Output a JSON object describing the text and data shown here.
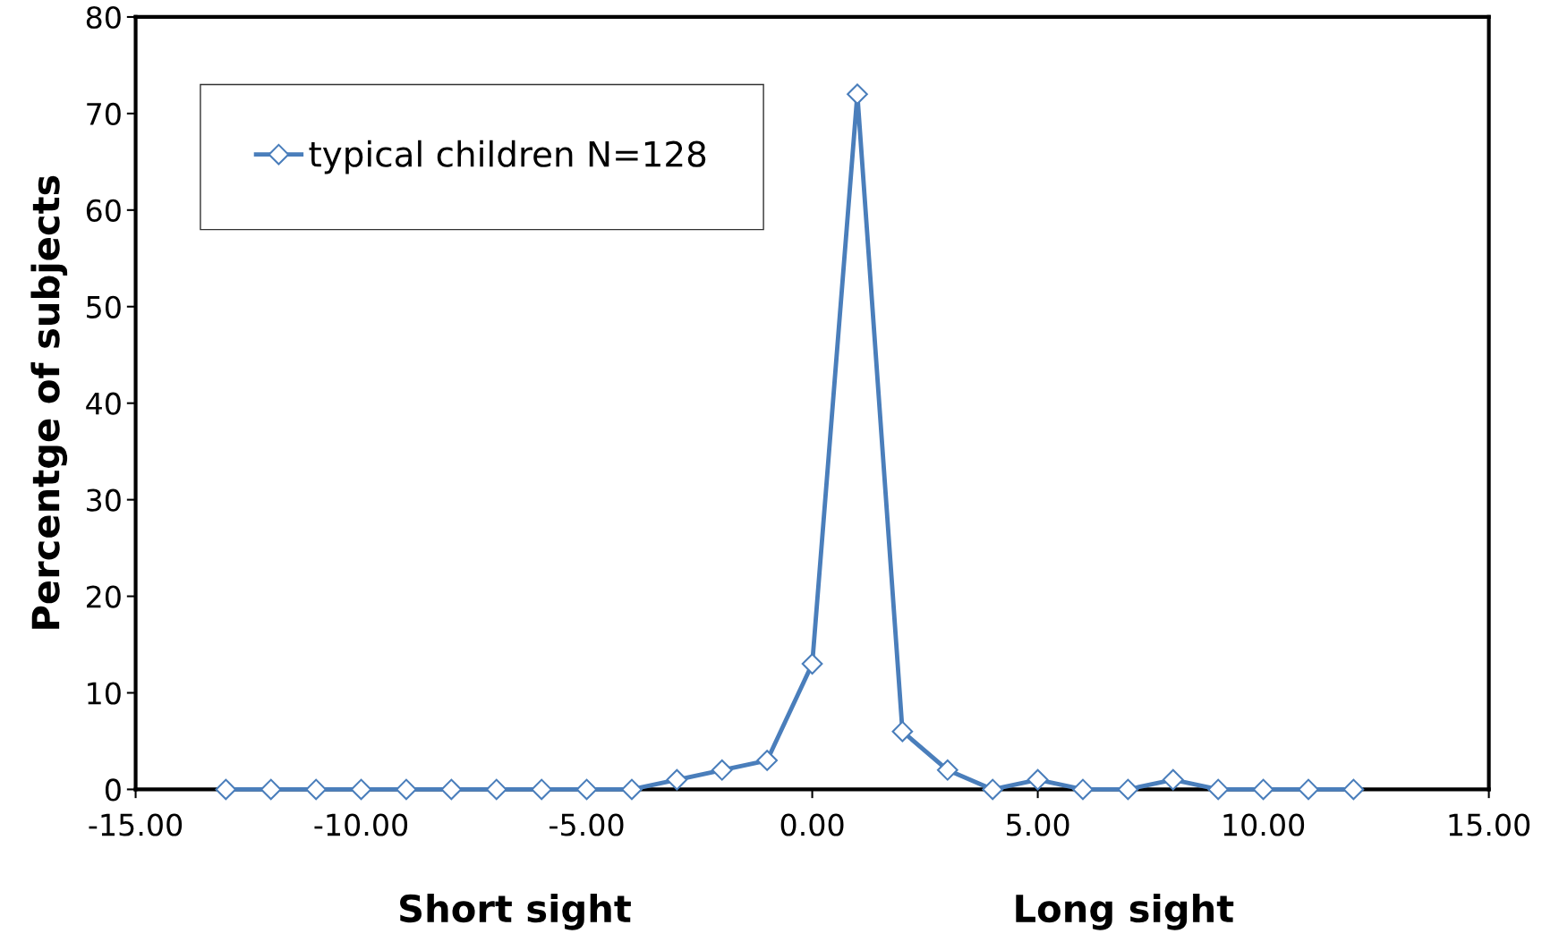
{
  "chart_data": {
    "type": "line",
    "ylabel": "Percentge of subjects",
    "annotations": [
      "Short sight",
      "Long sight"
    ],
    "x": [
      -13,
      -12,
      -11,
      -10,
      -9,
      -8,
      -7,
      -6,
      -5,
      -4,
      -3,
      -2,
      -1,
      0,
      1,
      2,
      3,
      4,
      5,
      6,
      7,
      8,
      9,
      10,
      11,
      12
    ],
    "series": [
      {
        "name": "typical children N=128",
        "color": "#4a7ebb",
        "values": [
          0,
          0,
          0,
          0,
          0,
          0,
          0,
          0,
          0,
          0,
          1,
          2,
          3,
          13,
          72,
          6,
          2,
          0,
          1,
          0,
          0,
          1,
          0,
          0,
          0,
          0
        ]
      }
    ],
    "xlim": [
      -15,
      15
    ],
    "xticks": [
      {
        "value": -15,
        "label": "-15.00"
      },
      {
        "value": -10,
        "label": "-10.00"
      },
      {
        "value": -5,
        "label": "-5.00"
      },
      {
        "value": 0,
        "label": "0.00"
      },
      {
        "value": 5,
        "label": "5.00"
      },
      {
        "value": 10,
        "label": "10.00"
      },
      {
        "value": 15,
        "label": "15.00"
      }
    ],
    "ylim": [
      0,
      80
    ],
    "yticks": [
      0,
      10,
      20,
      30,
      40,
      50,
      60,
      70,
      80
    ],
    "grid": false,
    "legend": "top left",
    "marker": "diamond",
    "line_style": "solid"
  }
}
